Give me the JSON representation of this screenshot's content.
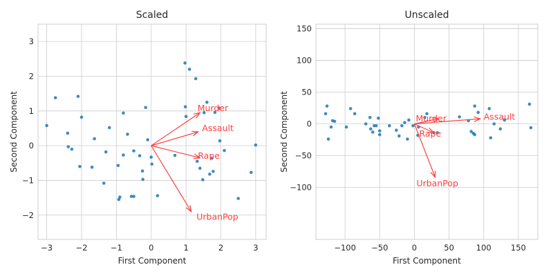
{
  "chart_data": [
    {
      "type": "scatter",
      "title": "Scaled",
      "xlabel": "First Component",
      "ylabel": "Second Component",
      "xlim": [
        -3.25,
        3.3
      ],
      "ylim": [
        -2.7,
        3.5
      ],
      "xticks": [
        -3,
        -2,
        -1,
        0,
        1,
        2,
        3
      ],
      "xtick_labels": [
        "−3",
        "−2",
        "−1",
        "0",
        "1",
        "2",
        "3"
      ],
      "yticks": [
        -2,
        -1,
        0,
        1,
        2,
        3
      ],
      "ytick_labels": [
        "−2",
        "−1",
        "0",
        "1",
        "2",
        "3"
      ],
      "grid": true,
      "point_color": "#1f77b4",
      "arrow_color": "#ff4040",
      "points": [
        [
          -3.0,
          0.58
        ],
        [
          -2.75,
          1.38
        ],
        [
          -2.4,
          0.36
        ],
        [
          -2.38,
          -0.03
        ],
        [
          -2.28,
          -0.1
        ],
        [
          -2.1,
          1.42
        ],
        [
          -2.05,
          -0.6
        ],
        [
          -2.0,
          0.82
        ],
        [
          -1.7,
          -0.62
        ],
        [
          -1.63,
          0.2
        ],
        [
          -1.36,
          -1.08
        ],
        [
          -1.3,
          -0.18
        ],
        [
          -1.2,
          0.52
        ],
        [
          -0.95,
          -0.57
        ],
        [
          -0.93,
          -1.55
        ],
        [
          -0.9,
          -1.48
        ],
        [
          -0.8,
          0.94
        ],
        [
          -0.8,
          -0.27
        ],
        [
          -0.68,
          0.33
        ],
        [
          -0.57,
          -1.46
        ],
        [
          -0.5,
          -1.46
        ],
        [
          -0.5,
          -0.15
        ],
        [
          -0.33,
          -0.29
        ],
        [
          -0.25,
          -0.73
        ],
        [
          -0.24,
          -0.97
        ],
        [
          -0.16,
          1.1
        ],
        [
          -0.1,
          0.17
        ],
        [
          0.0,
          -0.33
        ],
        [
          0.02,
          -0.53
        ],
        [
          0.18,
          -1.44
        ],
        [
          0.68,
          -0.28
        ],
        [
          0.97,
          2.38
        ],
        [
          0.98,
          1.12
        ],
        [
          1.0,
          0.84
        ],
        [
          1.1,
          2.2
        ],
        [
          1.28,
          1.93
        ],
        [
          1.32,
          -0.45
        ],
        [
          1.4,
          -0.65
        ],
        [
          1.48,
          -0.98
        ],
        [
          1.52,
          0.95
        ],
        [
          1.6,
          1.25
        ],
        [
          1.68,
          -0.82
        ],
        [
          1.74,
          -0.36
        ],
        [
          1.78,
          -0.74
        ],
        [
          1.83,
          0.96
        ],
        [
          1.95,
          1.08
        ],
        [
          1.97,
          0.14
        ],
        [
          2.1,
          -0.14
        ],
        [
          2.5,
          -1.52
        ],
        [
          2.87,
          -0.77
        ],
        [
          3.0,
          0.02
        ]
      ],
      "arrows": [
        {
          "label": "Murder",
          "dx": 1.4,
          "dy": 0.95,
          "lx": 1.33,
          "ly": 1.08
        },
        {
          "label": "Assault",
          "dx": 1.35,
          "dy": 0.4,
          "lx": 1.46,
          "ly": 0.5
        },
        {
          "label": "Rape",
          "dx": 1.4,
          "dy": -0.35,
          "lx": 1.34,
          "ly": -0.3
        },
        {
          "label": "UrbanPop",
          "dx": 1.15,
          "dy": -1.9,
          "lx": 1.3,
          "ly": -2.05
        }
      ]
    },
    {
      "type": "scatter",
      "title": "Unscaled",
      "xlabel": "First Component",
      "ylabel": "Second Component",
      "xlim": [
        -142,
        178
      ],
      "ylim": [
        -182,
        157
      ],
      "xticks": [
        -100,
        -50,
        0,
        50,
        100,
        150
      ],
      "xtick_labels": [
        "−100",
        "−50",
        "0",
        "50",
        "100",
        "150"
      ],
      "yticks": [
        -100,
        -50,
        0,
        50,
        100,
        150
      ],
      "ytick_labels": [
        "−100",
        "−50",
        "0",
        "50",
        "100",
        "150"
      ],
      "grid": true,
      "point_color": "#1f77b4",
      "arrow_color": "#ff4040",
      "points": [
        [
          -126,
          28
        ],
        [
          -128,
          16
        ],
        [
          -124,
          -24
        ],
        [
          -118,
          5
        ],
        [
          -115,
          4
        ],
        [
          -120,
          -5
        ],
        [
          -98,
          -5
        ],
        [
          -92,
          24
        ],
        [
          -86,
          16
        ],
        [
          -70,
          0
        ],
        [
          -64,
          10
        ],
        [
          -63,
          -8
        ],
        [
          -60,
          -13
        ],
        [
          -58,
          -3
        ],
        [
          -55,
          -3
        ],
        [
          -52,
          9
        ],
        [
          -50,
          -17
        ],
        [
          -50,
          -11
        ],
        [
          -36,
          -3
        ],
        [
          -26,
          -10
        ],
        [
          -22,
          -19
        ],
        [
          -18,
          -3
        ],
        [
          -14,
          2
        ],
        [
          -10,
          -24
        ],
        [
          -8,
          6
        ],
        [
          -2,
          -3
        ],
        [
          5,
          -18
        ],
        [
          6,
          -5
        ],
        [
          15,
          10
        ],
        [
          18,
          16
        ],
        [
          28,
          -14
        ],
        [
          33,
          -14
        ],
        [
          65,
          11
        ],
        [
          78,
          5
        ],
        [
          82,
          -12
        ],
        [
          85,
          -15
        ],
        [
          87,
          -17
        ],
        [
          87,
          28
        ],
        [
          92,
          18
        ],
        [
          108,
          24
        ],
        [
          110,
          -22
        ],
        [
          115,
          0
        ],
        [
          124,
          -8
        ],
        [
          130,
          6
        ],
        [
          166,
          31
        ],
        [
          168,
          -6
        ]
      ],
      "arrows": [
        {
          "label": "Murder",
          "dx": 35,
          "dy": 8,
          "lx": 2,
          "ly": 8
        },
        {
          "label": "Assault",
          "dx": 95,
          "dy": 8,
          "lx": 100,
          "ly": 11
        },
        {
          "label": "Rape",
          "dx": 28,
          "dy": -14,
          "lx": 7,
          "ly": -16
        },
        {
          "label": "UrbanPop",
          "dx": 30,
          "dy": -84,
          "lx": 3,
          "ly": -94
        }
      ]
    }
  ]
}
